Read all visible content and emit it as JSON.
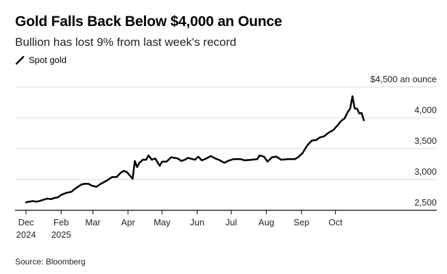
{
  "header": {
    "title": "Gold Falls Back Below $4,000 an Ounce",
    "subtitle": "Bullion has lost 9% from last week's record"
  },
  "legend": {
    "series_name": "Spot gold"
  },
  "footer": {
    "source": "Source: Bloomberg"
  },
  "colors": {
    "line": "#000000",
    "grid": "#d9d9d9",
    "axis": "#000000"
  },
  "chart_data": {
    "type": "line",
    "title": "Gold Falls Back Below $4,000 an Ounce",
    "subtitle": "Bullion has lost 9% from last week's record",
    "xlabel": "",
    "ylabel": "",
    "ylim": [
      2500,
      4500
    ],
    "grid": true,
    "y_ticks": [
      {
        "value": 2500,
        "label": "2,500"
      },
      {
        "value": 3000,
        "label": "3,000"
      },
      {
        "value": 3500,
        "label": "3,500"
      },
      {
        "value": 4000,
        "label": "4,000"
      },
      {
        "value": 4500,
        "label": "$4,500 an ounce"
      }
    ],
    "x_domain": [
      0,
      323
    ],
    "x_ticks": [
      {
        "day": 0,
        "label": "Dec",
        "sublabel": "2024"
      },
      {
        "day": 31,
        "label": "Feb",
        "sublabel": "2025"
      },
      {
        "day": 59,
        "label": "Mar",
        "sublabel": ""
      },
      {
        "day": 90,
        "label": "Apr",
        "sublabel": ""
      },
      {
        "day": 120,
        "label": "May",
        "sublabel": ""
      },
      {
        "day": 151,
        "label": "Jun",
        "sublabel": ""
      },
      {
        "day": 181,
        "label": "Jul",
        "sublabel": ""
      },
      {
        "day": 212,
        "label": "Aug",
        "sublabel": ""
      },
      {
        "day": 243,
        "label": "Sep",
        "sublabel": ""
      },
      {
        "day": 273,
        "label": "Oct",
        "sublabel": ""
      }
    ],
    "series": [
      {
        "name": "Spot gold",
        "x": [
          0,
          3,
          6,
          9,
          12,
          15,
          19,
          22,
          25,
          28,
          31,
          35,
          40,
          44,
          49,
          52,
          55,
          58,
          62,
          66,
          71,
          76,
          80,
          83,
          86,
          89,
          94,
          96,
          98,
          100,
          103,
          106,
          108,
          111,
          114,
          118,
          120,
          124,
          128,
          134,
          137,
          140,
          143,
          149,
          152,
          155,
          159,
          163,
          167,
          170,
          175,
          178,
          183,
          189,
          193,
          199,
          204,
          206,
          210,
          213,
          217,
          221,
          225,
          231,
          237,
          240,
          244,
          248,
          252,
          256,
          259,
          263,
          267,
          271,
          275,
          278,
          281,
          284,
          286,
          288,
          290,
          292,
          294,
          296,
          298
        ],
        "values": [
          2630,
          2640,
          2650,
          2640,
          2650,
          2670,
          2690,
          2680,
          2700,
          2710,
          2750,
          2780,
          2800,
          2860,
          2920,
          2930,
          2930,
          2900,
          2880,
          2930,
          2980,
          3040,
          3040,
          3100,
          3140,
          3120,
          3010,
          3300,
          3200,
          3270,
          3320,
          3320,
          3390,
          3320,
          3340,
          3220,
          3290,
          3290,
          3360,
          3340,
          3300,
          3320,
          3350,
          3320,
          3370,
          3310,
          3340,
          3380,
          3340,
          3320,
          3270,
          3300,
          3330,
          3330,
          3310,
          3320,
          3330,
          3390,
          3370,
          3290,
          3360,
          3370,
          3320,
          3330,
          3330,
          3360,
          3430,
          3550,
          3630,
          3640,
          3680,
          3700,
          3760,
          3800,
          3880,
          3950,
          3990,
          4100,
          4150,
          4350,
          4150,
          4150,
          4070,
          4080,
          3960
        ]
      }
    ]
  }
}
